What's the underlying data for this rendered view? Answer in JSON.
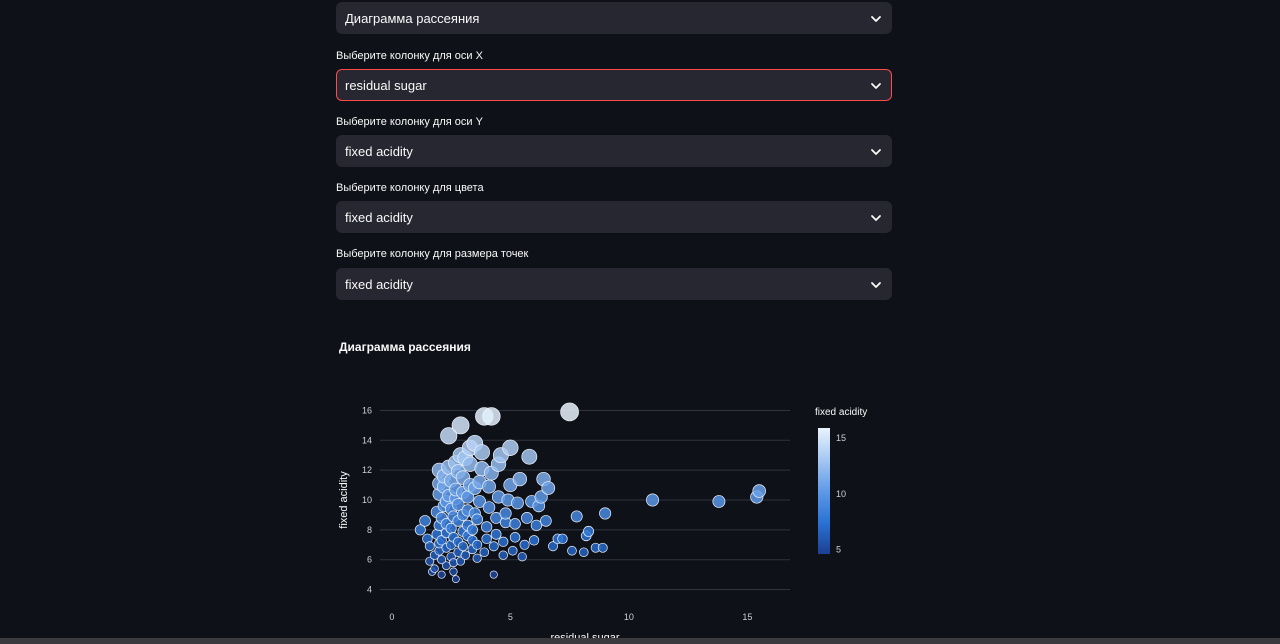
{
  "form": {
    "chart_type_value": "Диаграмма рассеяния",
    "x_label": "Выберите колонку для оси X",
    "x_value": "residual sugar",
    "y_label": "Выберите колонку для оси Y",
    "y_value": "fixed acidity",
    "color_label": "Выберите колонку для цвета",
    "color_value": "fixed acidity",
    "size_label": "Выберите колонку для размера точек",
    "size_value": "fixed acidity"
  },
  "chart_data": {
    "type": "scatter",
    "title": "Диаграмма рассеяния",
    "xlabel": "residual sugar",
    "ylabel": "fixed acidity",
    "xlim": [
      -0.5,
      16.8
    ],
    "ylim": [
      3.3,
      16.7
    ],
    "x_ticks": [
      0,
      5,
      10,
      15
    ],
    "y_ticks": [
      4,
      6,
      8,
      10,
      12,
      14,
      16
    ],
    "grid": true,
    "colorbar": {
      "title": "fixed acidity",
      "ticks": [
        5,
        10,
        15
      ],
      "range": [
        4.6,
        15.9
      ]
    },
    "color_scale": [
      "#1c3f93",
      "#2a72d4",
      "#5f9ae8",
      "#a6c8f2",
      "#e9f3fd"
    ],
    "points": [
      [
        1.2,
        8.0
      ],
      [
        1.4,
        8.6
      ],
      [
        1.5,
        7.4
      ],
      [
        1.6,
        6.9
      ],
      [
        1.6,
        5.9
      ],
      [
        1.7,
        5.2
      ],
      [
        1.8,
        5.4
      ],
      [
        1.8,
        6.3
      ],
      [
        1.9,
        7.7
      ],
      [
        1.9,
        9.2
      ],
      [
        2.0,
        6.6
      ],
      [
        2.0,
        7.1
      ],
      [
        2.0,
        8.3
      ],
      [
        2.0,
        10.4
      ],
      [
        2.0,
        11.1
      ],
      [
        2.0,
        12.0
      ],
      [
        2.1,
        5.0
      ],
      [
        2.1,
        6.0
      ],
      [
        2.1,
        7.3
      ],
      [
        2.1,
        8.8
      ],
      [
        2.2,
        9.6
      ],
      [
        2.2,
        10.9
      ],
      [
        2.2,
        11.6
      ],
      [
        2.3,
        5.6
      ],
      [
        2.3,
        6.8
      ],
      [
        2.3,
        7.8
      ],
      [
        2.3,
        8.4
      ],
      [
        2.3,
        9.9
      ],
      [
        2.4,
        12.2
      ],
      [
        2.4,
        14.3
      ],
      [
        2.4,
        10.3
      ],
      [
        2.5,
        6.2
      ],
      [
        2.5,
        7.0
      ],
      [
        2.5,
        8.1
      ],
      [
        2.5,
        9.4
      ],
      [
        2.5,
        11.3
      ],
      [
        2.6,
        5.2
      ],
      [
        2.6,
        5.8
      ],
      [
        2.6,
        7.5
      ],
      [
        2.6,
        8.9
      ],
      [
        2.7,
        10.1
      ],
      [
        2.7,
        10.7
      ],
      [
        2.7,
        12.5
      ],
      [
        2.7,
        4.7
      ],
      [
        2.8,
        6.5
      ],
      [
        2.8,
        7.2
      ],
      [
        2.8,
        8.6
      ],
      [
        2.8,
        9.7
      ],
      [
        2.8,
        11.9
      ],
      [
        2.9,
        13.0
      ],
      [
        2.9,
        15.0
      ],
      [
        2.9,
        5.9
      ],
      [
        3.0,
        6.9
      ],
      [
        3.0,
        7.9
      ],
      [
        3.0,
        9.0
      ],
      [
        3.0,
        10.5
      ],
      [
        3.0,
        11.5
      ],
      [
        3.1,
        12.8
      ],
      [
        3.1,
        6.3
      ],
      [
        3.2,
        7.6
      ],
      [
        3.2,
        8.3
      ],
      [
        3.2,
        9.3
      ],
      [
        3.2,
        10.2
      ],
      [
        3.3,
        11.0
      ],
      [
        3.3,
        12.4
      ],
      [
        3.3,
        13.5
      ],
      [
        3.4,
        6.7
      ],
      [
        3.4,
        7.3
      ],
      [
        3.4,
        8.0
      ],
      [
        3.5,
        9.1
      ],
      [
        3.5,
        10.8
      ],
      [
        3.5,
        13.8
      ],
      [
        3.6,
        6.1
      ],
      [
        3.6,
        7.0
      ],
      [
        3.6,
        8.7
      ],
      [
        3.7,
        9.9
      ],
      [
        3.7,
        11.2
      ],
      [
        3.8,
        12.1
      ],
      [
        3.8,
        13.2
      ],
      [
        3.9,
        15.6
      ],
      [
        3.9,
        6.5
      ],
      [
        4.0,
        7.4
      ],
      [
        4.0,
        8.2
      ],
      [
        4.1,
        9.5
      ],
      [
        4.1,
        10.9
      ],
      [
        4.2,
        11.8
      ],
      [
        4.2,
        15.6
      ],
      [
        4.3,
        5.0
      ],
      [
        4.3,
        6.9
      ],
      [
        4.4,
        7.7
      ],
      [
        4.4,
        8.8
      ],
      [
        4.5,
        10.2
      ],
      [
        4.5,
        12.4
      ],
      [
        4.6,
        13.0
      ],
      [
        4.7,
        6.3
      ],
      [
        4.7,
        7.2
      ],
      [
        4.8,
        8.5
      ],
      [
        4.8,
        9.1
      ],
      [
        4.9,
        10.0
      ],
      [
        5.0,
        11.0
      ],
      [
        5.0,
        13.5
      ],
      [
        5.1,
        6.6
      ],
      [
        5.2,
        7.5
      ],
      [
        5.2,
        8.4
      ],
      [
        5.3,
        9.8
      ],
      [
        5.4,
        11.4
      ],
      [
        5.5,
        6.2
      ],
      [
        5.6,
        7.0
      ],
      [
        5.7,
        8.8
      ],
      [
        5.8,
        12.9
      ],
      [
        5.9,
        9.9
      ],
      [
        6.0,
        7.3
      ],
      [
        6.1,
        8.3
      ],
      [
        6.2,
        9.6
      ],
      [
        6.3,
        10.2
      ],
      [
        6.4,
        11.4
      ],
      [
        6.5,
        8.6
      ],
      [
        6.6,
        10.8
      ],
      [
        6.8,
        6.9
      ],
      [
        7.0,
        7.4
      ],
      [
        7.2,
        7.4
      ],
      [
        7.5,
        15.9
      ],
      [
        7.6,
        6.6
      ],
      [
        7.8,
        8.9
      ],
      [
        8.1,
        6.5
      ],
      [
        8.2,
        7.6
      ],
      [
        8.3,
        7.9
      ],
      [
        8.6,
        6.8
      ],
      [
        8.9,
        6.8
      ],
      [
        9.0,
        9.1
      ],
      [
        11.0,
        10.0
      ],
      [
        13.8,
        9.9
      ],
      [
        15.4,
        10.2
      ],
      [
        15.5,
        10.6
      ]
    ]
  }
}
